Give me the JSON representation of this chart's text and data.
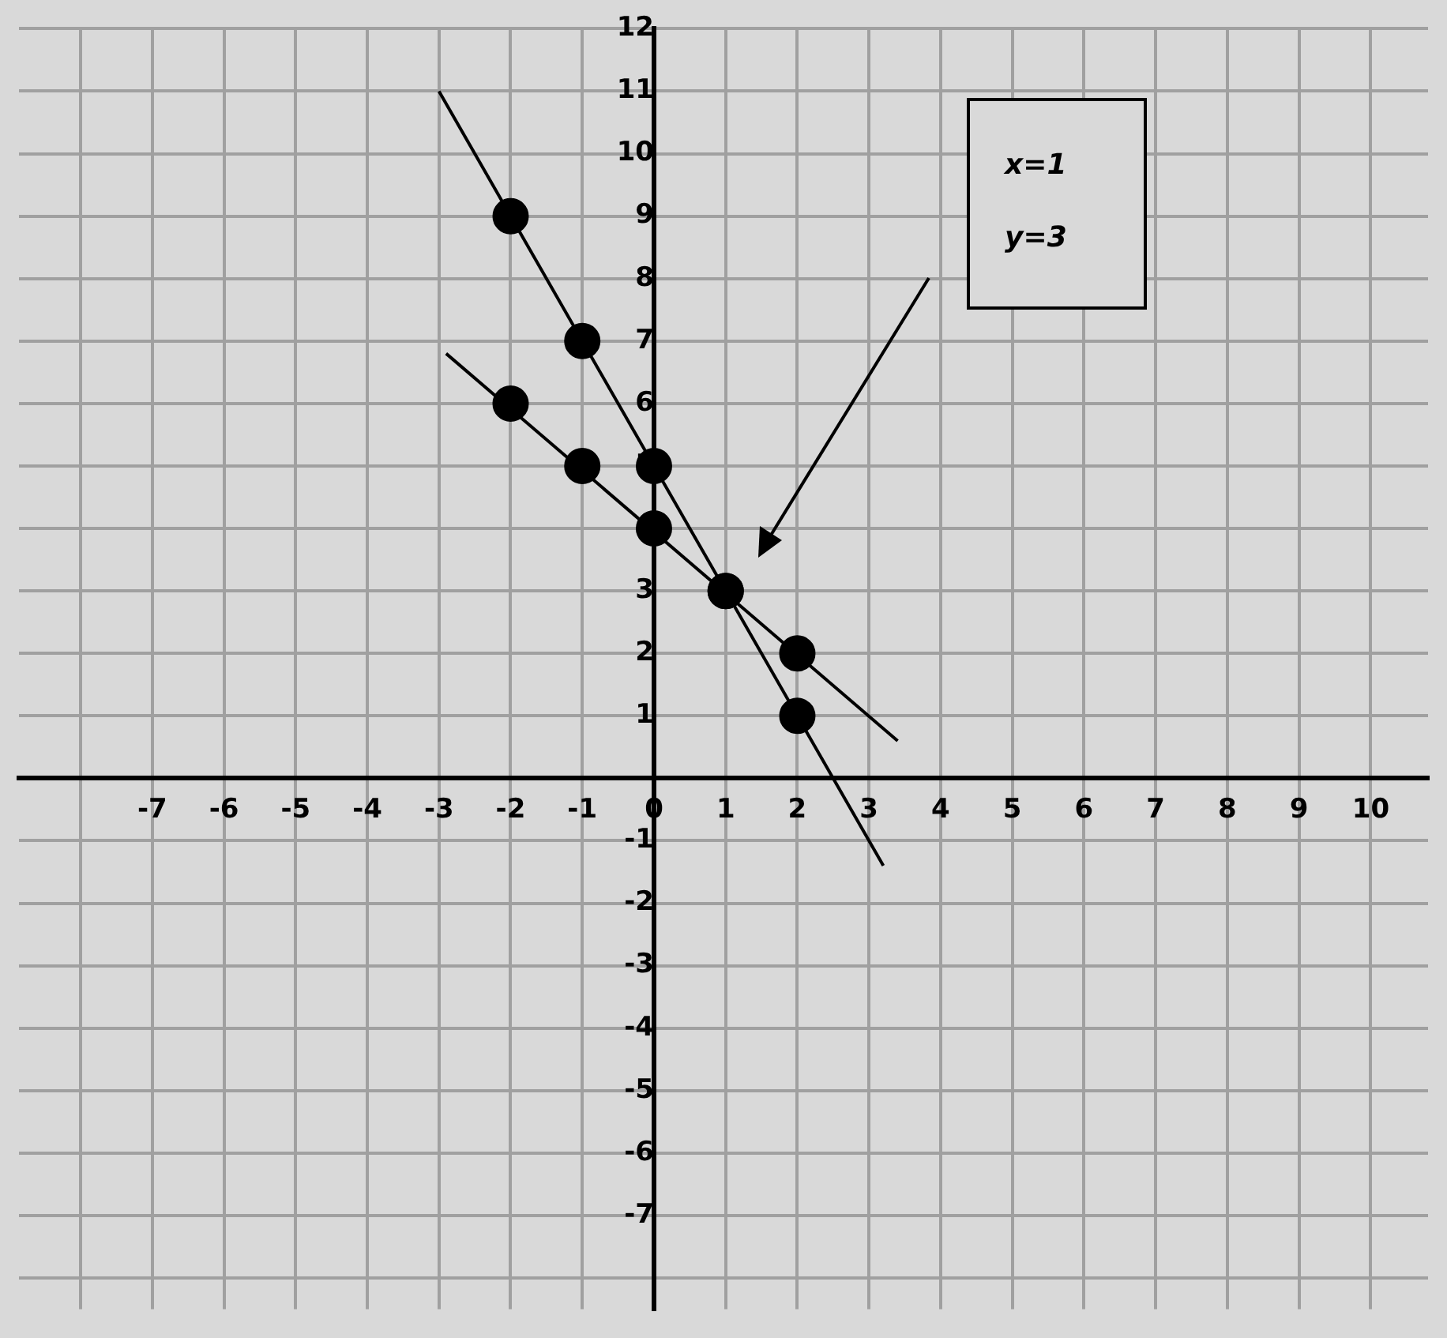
{
  "chart_data": {
    "type": "scatter",
    "xlim": [
      -8.86,
      10.8
    ],
    "ylim": [
      -8.5,
      12
    ],
    "grid": true,
    "xticks": [
      {
        "value": -8,
        "label": null
      },
      -7,
      -6,
      -5,
      -4,
      -3,
      -2,
      -1,
      0,
      1,
      2,
      3,
      4,
      5,
      6,
      7,
      8,
      9,
      10
    ],
    "yticks": [
      {
        "value": -8,
        "label": null
      },
      -7,
      -6,
      -5,
      -4,
      -3,
      -2,
      -1,
      {
        "value": 0,
        "label": null
      },
      1,
      2,
      3,
      4,
      5,
      6,
      7,
      8,
      9,
      10,
      11,
      12
    ],
    "series": [
      {
        "type": "line",
        "color": "#000000",
        "marker": "none",
        "x": [
          -3,
          3.2
        ],
        "values": [
          11,
          -1.4
        ]
      },
      {
        "type": "line",
        "color": "#000000",
        "marker": "none",
        "x": [
          -2.9,
          3.4
        ],
        "values": [
          6.8,
          0.6
        ]
      },
      {
        "color": "#000000",
        "marker": "circle",
        "x": [
          -2,
          -1,
          0,
          1,
          2
        ],
        "values": [
          9,
          7,
          5,
          3,
          1
        ]
      },
      {
        "color": "#000000",
        "marker": "circle",
        "x": [
          -2,
          -1,
          0,
          1,
          2
        ],
        "values": [
          6,
          5,
          4,
          3,
          2
        ]
      }
    ],
    "annotations": [
      "x=1",
      "y=3"
    ]
  }
}
